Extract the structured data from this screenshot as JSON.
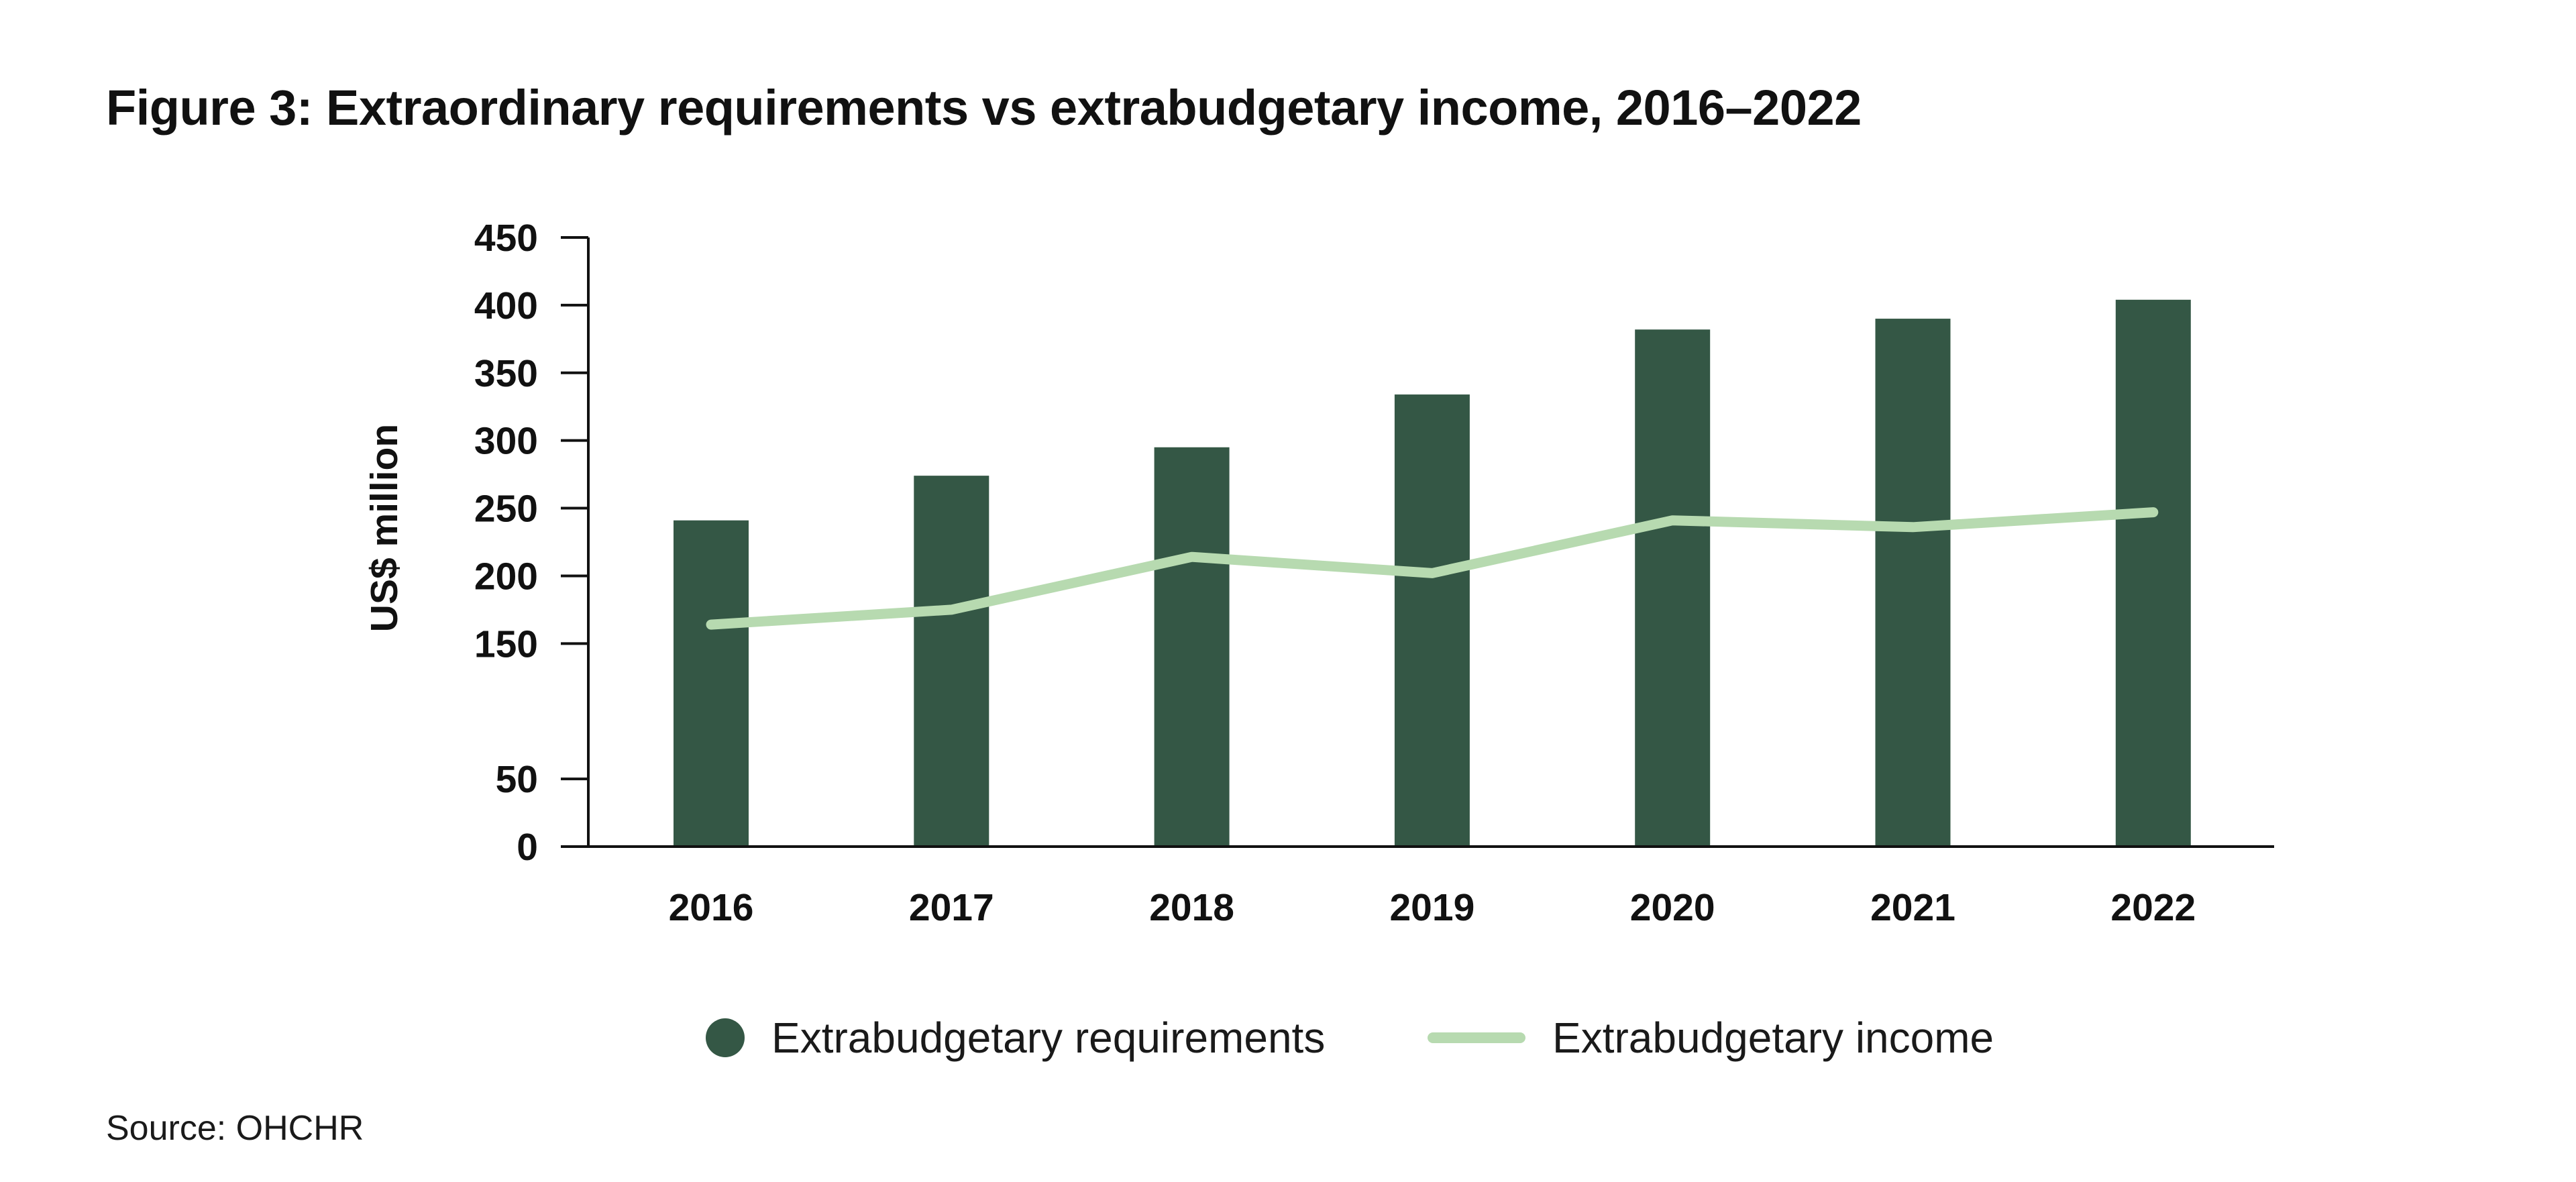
{
  "title": "Figure 3: Extraordinary requirements vs extrabudgetary income, 2016–2022",
  "source": "Source: OHCHR",
  "colors": {
    "bars": "#345745",
    "line": "#b7dab0",
    "axis": "#111111"
  },
  "chart_data": {
    "type": "bar",
    "title": "Figure 3: Extraordinary requirements vs extrabudgetary income, 2016–2022",
    "xlabel": "",
    "ylabel": "US$ million",
    "ylim": [
      0,
      450
    ],
    "yticks": [
      0,
      50,
      150,
      200,
      250,
      300,
      350,
      400,
      450
    ],
    "categories": [
      "2016",
      "2017",
      "2018",
      "2019",
      "2020",
      "2021",
      "2022"
    ],
    "grid": false,
    "legend_position": "bottom",
    "series": [
      {
        "name": "Extrabudgetary requirements",
        "type": "bar",
        "values": [
          241,
          274,
          295,
          334,
          382,
          390,
          404
        ]
      },
      {
        "name": "Extrabudgetary income",
        "type": "line",
        "values": [
          164,
          175,
          214,
          202,
          241,
          236,
          247
        ]
      }
    ]
  }
}
